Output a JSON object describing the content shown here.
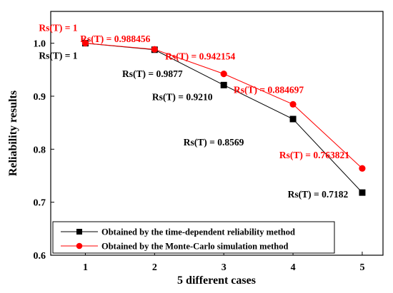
{
  "chart_data": {
    "type": "line",
    "xlabel": "5 different cases",
    "ylabel": "Reliability results",
    "xlim": [
      0.5,
      5.3
    ],
    "ylim": [
      0.6,
      1.06
    ],
    "x_ticks": [
      "1",
      "2",
      "3",
      "4",
      "5"
    ],
    "y_ticks": [
      "0.6",
      "0.7",
      "0.8",
      "0.9",
      "1.0"
    ],
    "x": [
      1,
      2,
      3,
      4,
      5
    ],
    "series": [
      {
        "name": "Obtained by the time-dependent reliability method",
        "color": "#000000",
        "marker": "square",
        "values": [
          1.0,
          0.9877,
          0.921,
          0.8569,
          0.7182
        ],
        "annotations": [
          "Rs(T) = 1",
          "Rs(T) = 0.9877",
          "Rs(T) = 0.9210",
          "Rs(T) = 0.8569",
          "Rs(T) = 0.7182"
        ]
      },
      {
        "name": "Obtained by the Monte-Carlo simulation method",
        "color": "#ff0000",
        "marker": "circle",
        "values": [
          1.0,
          0.988456,
          0.942154,
          0.884697,
          0.763821
        ],
        "annotations": [
          "Rs(T) = 1",
          "Rs(T) = 0.988456",
          "Rs(T) = 0.942154",
          "Rs(T) = 0.884697",
          "Rs(T) = 0.763821"
        ]
      }
    ],
    "legend_position": "bottom-left",
    "grid": false
  }
}
